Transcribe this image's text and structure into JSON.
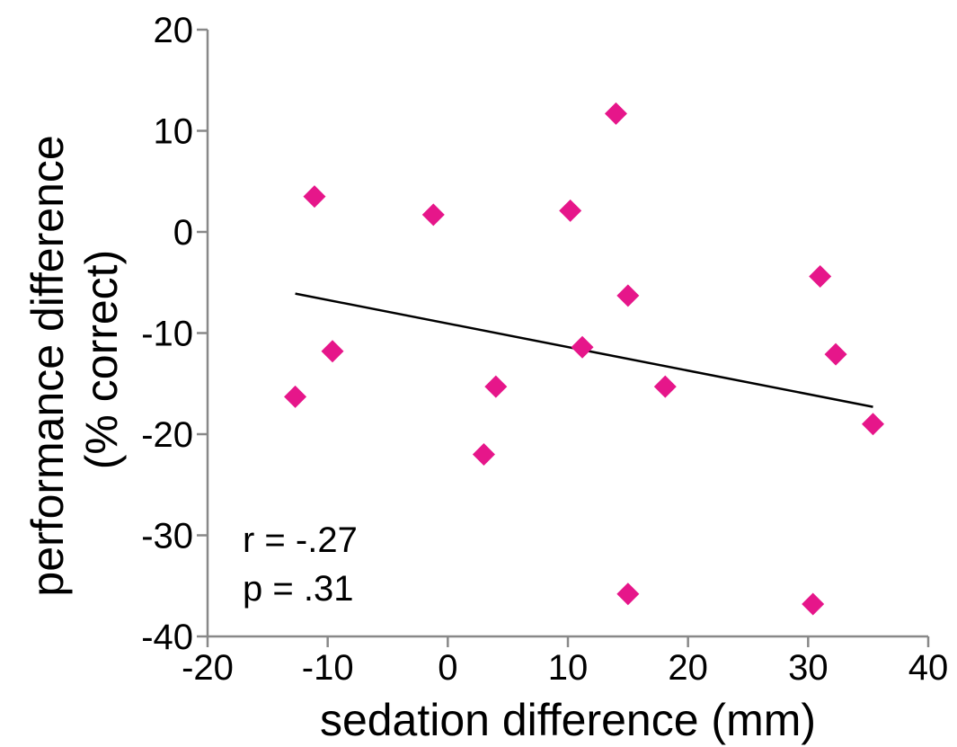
{
  "chart_data": {
    "type": "scatter",
    "xlabel": "sedation difference (mm)",
    "ylabel_lines": [
      "performance difference",
      "(% correct)"
    ],
    "xlim": [
      -20,
      40
    ],
    "ylim": [
      -40,
      20
    ],
    "x_ticks": [
      -20,
      -10,
      0,
      10,
      20,
      30,
      40
    ],
    "y_ticks": [
      -40,
      -30,
      -20,
      -10,
      0,
      10,
      20
    ],
    "x_tick_labels": [
      "-20",
      "-10",
      "0",
      "10",
      "20",
      "30",
      "40"
    ],
    "y_tick_labels": [
      "-40",
      "-30",
      "-20",
      "-10",
      "0",
      "10",
      "20"
    ],
    "grid": false,
    "marker": "diamond",
    "marker_color": "#e6168a",
    "points": [
      {
        "x": -12.7,
        "y": -16.3
      },
      {
        "x": -11.1,
        "y": 3.5
      },
      {
        "x": -9.6,
        "y": -11.8
      },
      {
        "x": -1.2,
        "y": 1.7
      },
      {
        "x": 3.0,
        "y": -22.0
      },
      {
        "x": 4.0,
        "y": -15.3
      },
      {
        "x": 10.2,
        "y": 2.1
      },
      {
        "x": 11.2,
        "y": -11.4
      },
      {
        "x": 14.0,
        "y": 11.7
      },
      {
        "x": 15.0,
        "y": -6.3
      },
      {
        "x": 15.0,
        "y": -35.8
      },
      {
        "x": 18.1,
        "y": -15.3
      },
      {
        "x": 30.4,
        "y": -36.8
      },
      {
        "x": 31.0,
        "y": -4.4
      },
      {
        "x": 32.3,
        "y": -12.1
      },
      {
        "x": 35.4,
        "y": -19.0
      }
    ],
    "trendline": {
      "x": [
        -12.7,
        35.4
      ],
      "y": [
        -6.1,
        -17.3
      ],
      "color": "#000000"
    },
    "annotations": [
      "r = -.27",
      "p = .31"
    ]
  }
}
